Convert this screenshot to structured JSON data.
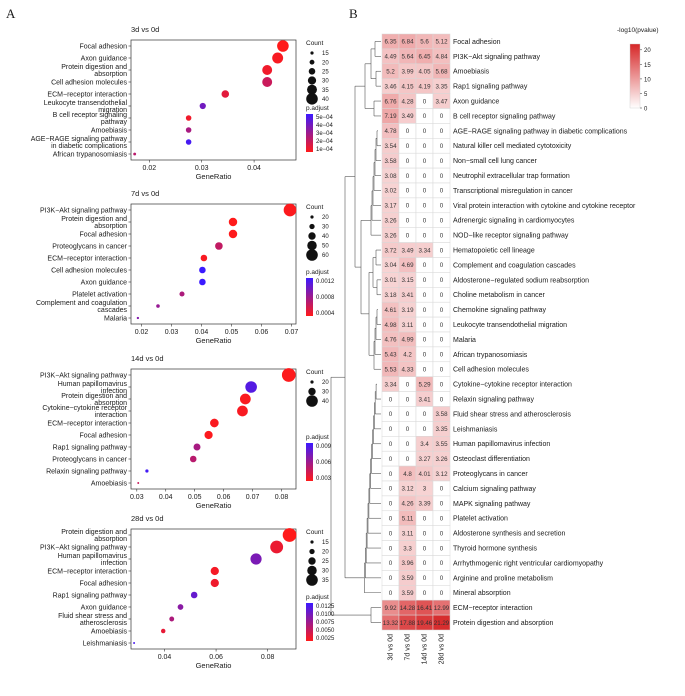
{
  "panel_letters": {
    "a": "A",
    "b": "B"
  },
  "chart_data": [
    {
      "type": "scatter",
      "panel": "A",
      "title": "3d vs 0d",
      "xlabel": "GeneRatio",
      "xlim": [
        0.0165,
        0.048
      ],
      "xticks": [
        0.02,
        0.03,
        0.04
      ],
      "xtick_labels": [
        "0.02",
        "0.03",
        "0.04"
      ],
      "points": [
        {
          "term": "Focal adhesion",
          "x": 0.0455,
          "count": 40,
          "padj": 1e-05
        },
        {
          "term": "Axon guidance",
          "x": 0.0445,
          "count": 38,
          "padj": 3e-05
        },
        {
          "term": "Protein digestion and absorption",
          "x": 0.0425,
          "count": 35,
          "padj": 5e-05
        },
        {
          "term": "Cell adhesion molecules",
          "x": 0.0425,
          "count": 35,
          "padj": 0.00016
        },
        {
          "term": "ECM−receptor interaction",
          "x": 0.0345,
          "count": 28,
          "padj": 9e-05
        },
        {
          "term": "Leukocyte transendothelial migration",
          "x": 0.0302,
          "count": 24,
          "padj": 0.0004
        },
        {
          "term": "B cell receptor signaling pathway",
          "x": 0.0275,
          "count": 22,
          "padj": 5e-05
        },
        {
          "term": "Amoebiasis",
          "x": 0.0275,
          "count": 22,
          "padj": 0.00025
        },
        {
          "term": "AGE−RAGE signaling pathway in diabetic complications",
          "x": 0.0275,
          "count": 22,
          "padj": 0.00052
        },
        {
          "term": "African trypanosomiasis",
          "x": 0.0172,
          "count": 14,
          "padj": 0.0002
        }
      ],
      "size_legend": {
        "title": "Count",
        "values": [
          15,
          20,
          25,
          30,
          35,
          40
        ]
      },
      "color_legend": {
        "title": "p.adjust",
        "labels": [
          "5e−04",
          "4e−04",
          "3e−04",
          "2e−04",
          "1e−04"
        ],
        "range": [
          1e-05,
          0.00055
        ]
      }
    },
    {
      "type": "scatter",
      "panel": "A",
      "title": "7d vs 0d",
      "xlabel": "GeneRatio",
      "xlim": [
        0.0165,
        0.0715
      ],
      "xticks": [
        0.02,
        0.03,
        0.04,
        0.05,
        0.06,
        0.07
      ],
      "xtick_labels": [
        "0.02",
        "0.03",
        "0.04",
        "0.05",
        "0.06",
        "0.07"
      ],
      "points": [
        {
          "term": "PI3K−Akt signaling pathway",
          "x": 0.0695,
          "count": 65,
          "padj": 3e-05
        },
        {
          "term": "Protein digestion and absorption",
          "x": 0.0505,
          "count": 45,
          "padj": 1e-05
        },
        {
          "term": "Focal adhesion",
          "x": 0.0505,
          "count": 45,
          "padj": 2e-05
        },
        {
          "term": "Proteoglycans in cancer",
          "x": 0.0458,
          "count": 41,
          "padj": 0.00045
        },
        {
          "term": "ECM−receptor interaction",
          "x": 0.0408,
          "count": 36,
          "padj": 5e-05
        },
        {
          "term": "Cell adhesion molecules",
          "x": 0.0403,
          "count": 36,
          "padj": 0.0014
        },
        {
          "term": "Axon guidance",
          "x": 0.0403,
          "count": 36,
          "padj": 0.0014
        },
        {
          "term": "Platelet activation",
          "x": 0.0335,
          "count": 29,
          "padj": 0.0006
        },
        {
          "term": "Complement and coagulation cascades",
          "x": 0.0255,
          "count": 22,
          "padj": 0.00075
        },
        {
          "term": "Malaria",
          "x": 0.0188,
          "count": 16,
          "padj": 0.0009
        }
      ],
      "size_legend": {
        "title": "Count",
        "values": [
          20,
          30,
          40,
          50,
          60
        ]
      },
      "color_legend": {
        "title": "p.adjust",
        "labels": [
          "0.0012",
          "0.0008",
          "0.0004"
        ],
        "range": [
          1e-05,
          0.0014
        ]
      }
    },
    {
      "type": "scatter",
      "panel": "A",
      "title": "14d vs 0d",
      "xlabel": "GeneRatio",
      "xlim": [
        0.028,
        0.085
      ],
      "xticks": [
        0.03,
        0.04,
        0.05,
        0.06,
        0.07,
        0.08
      ],
      "xtick_labels": [
        "0.03",
        "0.04",
        "0.05",
        "0.06",
        "0.07",
        "0.08"
      ],
      "points": [
        {
          "term": "PI3K−Akt signaling pathway",
          "x": 0.0825,
          "count": 45,
          "padj": 0.0003
        },
        {
          "term": "Human papillomavirus infection",
          "x": 0.0695,
          "count": 40,
          "padj": 0.0105
        },
        {
          "term": "Protein digestion and absorption",
          "x": 0.0675,
          "count": 38,
          "padj": 0.0005
        },
        {
          "term": "Cytokine−cytokine receptor interaction",
          "x": 0.0665,
          "count": 38,
          "padj": 0.0006
        },
        {
          "term": "ECM−receptor interaction",
          "x": 0.0568,
          "count": 33,
          "padj": 0.0005
        },
        {
          "term": "Focal adhesion",
          "x": 0.0548,
          "count": 32,
          "padj": 0.0004
        },
        {
          "term": "Rap1 signaling pathway",
          "x": 0.0508,
          "count": 29,
          "padj": 0.0055
        },
        {
          "term": "Proteoglycans in cancer",
          "x": 0.0495,
          "count": 28,
          "padj": 0.0045
        },
        {
          "term": "Relaxin signaling pathway",
          "x": 0.0335,
          "count": 20,
          "padj": 0.0115
        },
        {
          "term": "Amoebiasis",
          "x": 0.0305,
          "count": 17,
          "padj": 0.0035
        }
      ],
      "size_legend": {
        "title": "Count",
        "values": [
          20,
          30,
          40
        ]
      },
      "color_legend": {
        "title": "p.adjust",
        "labels": [
          "0.009",
          "0.006",
          "0.003"
        ],
        "range": [
          0.0002,
          0.012
        ]
      }
    },
    {
      "type": "scatter",
      "panel": "A",
      "title": "28d vs 0d",
      "xlabel": "GeneRatio",
      "xlim": [
        0.027,
        0.091
      ],
      "xticks": [
        0.04,
        0.06,
        0.08
      ],
      "xtick_labels": [
        "0.04",
        "0.06",
        "0.08"
      ],
      "points": [
        {
          "term": "Protein digestion and absorption",
          "x": 0.0885,
          "count": 40,
          "padj": 5e-05
        },
        {
          "term": "PI3K−Akt signaling pathway",
          "x": 0.0835,
          "count": 38,
          "padj": 0.0015
        },
        {
          "term": "Human papillomavirus infection",
          "x": 0.0755,
          "count": 34,
          "padj": 0.0095
        },
        {
          "term": "ECM−receptor interaction",
          "x": 0.0595,
          "count": 27,
          "padj": 0.0008
        },
        {
          "term": "Focal adhesion",
          "x": 0.0595,
          "count": 27,
          "padj": 0.0012
        },
        {
          "term": "Rap1 signaling pathway",
          "x": 0.0515,
          "count": 23,
          "padj": 0.011
        },
        {
          "term": "Axon guidance",
          "x": 0.0462,
          "count": 21,
          "padj": 0.0085
        },
        {
          "term": "Fluid shear stress and atherosclerosis",
          "x": 0.0428,
          "count": 19,
          "padj": 0.006
        },
        {
          "term": "Amoebiasis",
          "x": 0.0395,
          "count": 18,
          "padj": 0.0018
        },
        {
          "term": "Leishmaniasis",
          "x": 0.0282,
          "count": 12,
          "padj": 0.013
        }
      ],
      "size_legend": {
        "title": "Count",
        "values": [
          15,
          20,
          25,
          30,
          35
        ]
      },
      "color_legend": {
        "title": "p.adjust",
        "labels": [
          "0.0125",
          "0.0100",
          "0.0075",
          "0.0050",
          "0.0025"
        ],
        "range": [
          0.0001,
          0.014
        ]
      }
    },
    {
      "type": "heatmap",
      "panel": "B",
      "legend_title": "-log10(pvalue)",
      "legend_ticks": [
        0,
        5,
        10,
        15,
        20
      ],
      "legend_range": [
        0,
        22
      ],
      "columns": [
        "3d vs 0d",
        "7d vs 0d",
        "14d vs 0d",
        "28d vs 0d"
      ],
      "rows": [
        {
          "term": "Focal adhesion",
          "values": [
            6.35,
            6.84,
            5.6,
            5.12
          ]
        },
        {
          "term": "PI3K−Akt signaling pathway",
          "values": [
            4.49,
            5.64,
            6.45,
            4.84
          ]
        },
        {
          "term": "Amoebiasis",
          "values": [
            5.2,
            3.99,
            4.05,
            5.68
          ]
        },
        {
          "term": "Rap1 signaling pathway",
          "values": [
            3.46,
            4.15,
            4.19,
            3.35
          ]
        },
        {
          "term": "Axon guidance",
          "values": [
            6.76,
            4.28,
            0,
            3.47
          ]
        },
        {
          "term": "B cell receptor signaling pathway",
          "values": [
            7.19,
            3.49,
            0,
            0
          ]
        },
        {
          "term": "AGE−RAGE signaling pathway in diabetic complications",
          "values": [
            4.78,
            0,
            0,
            0
          ]
        },
        {
          "term": "Natural killer cell mediated cytotoxicity",
          "values": [
            3.54,
            0,
            0,
            0
          ]
        },
        {
          "term": "Non−small cell lung cancer",
          "values": [
            3.58,
            0,
            0,
            0
          ]
        },
        {
          "term": "Neutrophil extracellular trap formation",
          "values": [
            3.08,
            0,
            0,
            0
          ]
        },
        {
          "term": "Transcriptional misregulation in cancer",
          "values": [
            3.02,
            0,
            0,
            0
          ]
        },
        {
          "term": "Viral protein interaction with cytokine and cytokine receptor",
          "values": [
            3.17,
            0,
            0,
            0
          ]
        },
        {
          "term": "Adrenergic signaling in cardiomyocytes",
          "values": [
            3.26,
            0,
            0,
            0
          ]
        },
        {
          "term": "NOD−like receptor signaling pathway",
          "values": [
            3.26,
            0,
            0,
            0
          ]
        },
        {
          "term": "Hematopoietic cell lineage",
          "values": [
            3.72,
            3.49,
            3.34,
            0
          ]
        },
        {
          "term": "Complement and coagulation cascades",
          "values": [
            3.04,
            4.69,
            0,
            0
          ]
        },
        {
          "term": "Aldosterone−regulated sodium reabsorption",
          "values": [
            3.01,
            3.15,
            0,
            0
          ]
        },
        {
          "term": "Choline metabolism in cancer",
          "values": [
            3.18,
            3.41,
            0,
            0
          ]
        },
        {
          "term": "Chemokine signaling pathway",
          "values": [
            4.61,
            3.19,
            0,
            0
          ]
        },
        {
          "term": "Leukocyte transendothelial migration",
          "values": [
            4.98,
            3.11,
            0,
            0
          ]
        },
        {
          "term": "Malaria",
          "values": [
            4.76,
            4.99,
            0,
            0
          ]
        },
        {
          "term": "African trypanosomiasis",
          "values": [
            5.43,
            4.2,
            0,
            0
          ]
        },
        {
          "term": "Cell adhesion molecules",
          "values": [
            5.53,
            4.33,
            0,
            0
          ]
        },
        {
          "term": "Cytokine−cytokine receptor interaction",
          "values": [
            3.34,
            0,
            5.29,
            0
          ]
        },
        {
          "term": "Relaxin signaling pathway",
          "values": [
            0,
            0,
            3.41,
            0
          ]
        },
        {
          "term": "Fluid shear stress and atherosclerosis",
          "values": [
            0,
            0,
            0,
            3.58
          ]
        },
        {
          "term": "Leishmaniasis",
          "values": [
            0,
            0,
            0,
            3.35
          ]
        },
        {
          "term": "Human papillomavirus infection",
          "values": [
            0,
            0,
            3.4,
            3.55
          ]
        },
        {
          "term": "Osteoclast differentiation",
          "values": [
            0,
            0,
            3.27,
            3.26
          ]
        },
        {
          "term": "Proteoglycans in cancer",
          "values": [
            0,
            4.8,
            4.01,
            3.12
          ]
        },
        {
          "term": "Calcium signaling pathway",
          "values": [
            0,
            3.12,
            3,
            0
          ]
        },
        {
          "term": "MAPK signaling pathway",
          "values": [
            0,
            4.26,
            3.39,
            0
          ]
        },
        {
          "term": "Platelet activation",
          "values": [
            0,
            5.11,
            0,
            0
          ]
        },
        {
          "term": "Aldosterone synthesis and secretion",
          "values": [
            0,
            3.11,
            0,
            0
          ]
        },
        {
          "term": "Thyroid hormone synthesis",
          "values": [
            0,
            3.3,
            0,
            0
          ]
        },
        {
          "term": "Arrhythmogenic right ventricular cardiomyopathy",
          "values": [
            0,
            3.96,
            0,
            0
          ]
        },
        {
          "term": "Arginine and proline metabolism",
          "values": [
            0,
            3.59,
            0,
            0
          ]
        },
        {
          "term": "Mineral absorption",
          "values": [
            0,
            3.59,
            0,
            0
          ]
        },
        {
          "term": "ECM−receptor interaction",
          "values": [
            9.92,
            14.28,
            16.41,
            12.99
          ]
        },
        {
          "term": "Protein digestion and absorption",
          "values": [
            13.32,
            17.88,
            19.46,
            21.29
          ]
        }
      ]
    }
  ]
}
